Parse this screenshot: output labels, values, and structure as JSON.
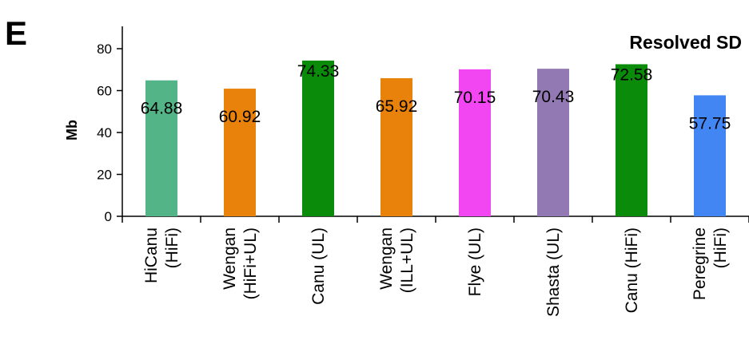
{
  "panel_label": "E",
  "chart_data": {
    "type": "bar",
    "title": "Resolved SD",
    "xlabel": "",
    "ylabel": "Mb",
    "ylim": [
      0,
      80
    ],
    "yticks": [
      0,
      20,
      40,
      60,
      80
    ],
    "grid": false,
    "legend": "none",
    "categories": [
      [
        "HiCanu",
        "(HiFi)"
      ],
      [
        "Wengan",
        "(HiFi+UL)"
      ],
      [
        "Canu (UL)"
      ],
      [
        "Wengan",
        "(ILL+UL)"
      ],
      [
        "Flye (UL)"
      ],
      [
        "Shasta (UL)"
      ],
      [
        "Canu (HiFi)"
      ],
      [
        "Peregrine",
        "(HiFi)"
      ]
    ],
    "values": [
      64.88,
      60.92,
      74.33,
      65.92,
      70.15,
      70.43,
      72.58,
      57.75
    ],
    "data_labels": [
      "64.88",
      "60.92",
      "74.33",
      "65.92",
      "70.15",
      "70.43",
      "72.58",
      "57.75"
    ],
    "colors": [
      "#52B487",
      "#E9820A",
      "#0A8C0A",
      "#E9820A",
      "#F246F2",
      "#9279B3",
      "#0A8C0A",
      "#4286F4"
    ]
  }
}
